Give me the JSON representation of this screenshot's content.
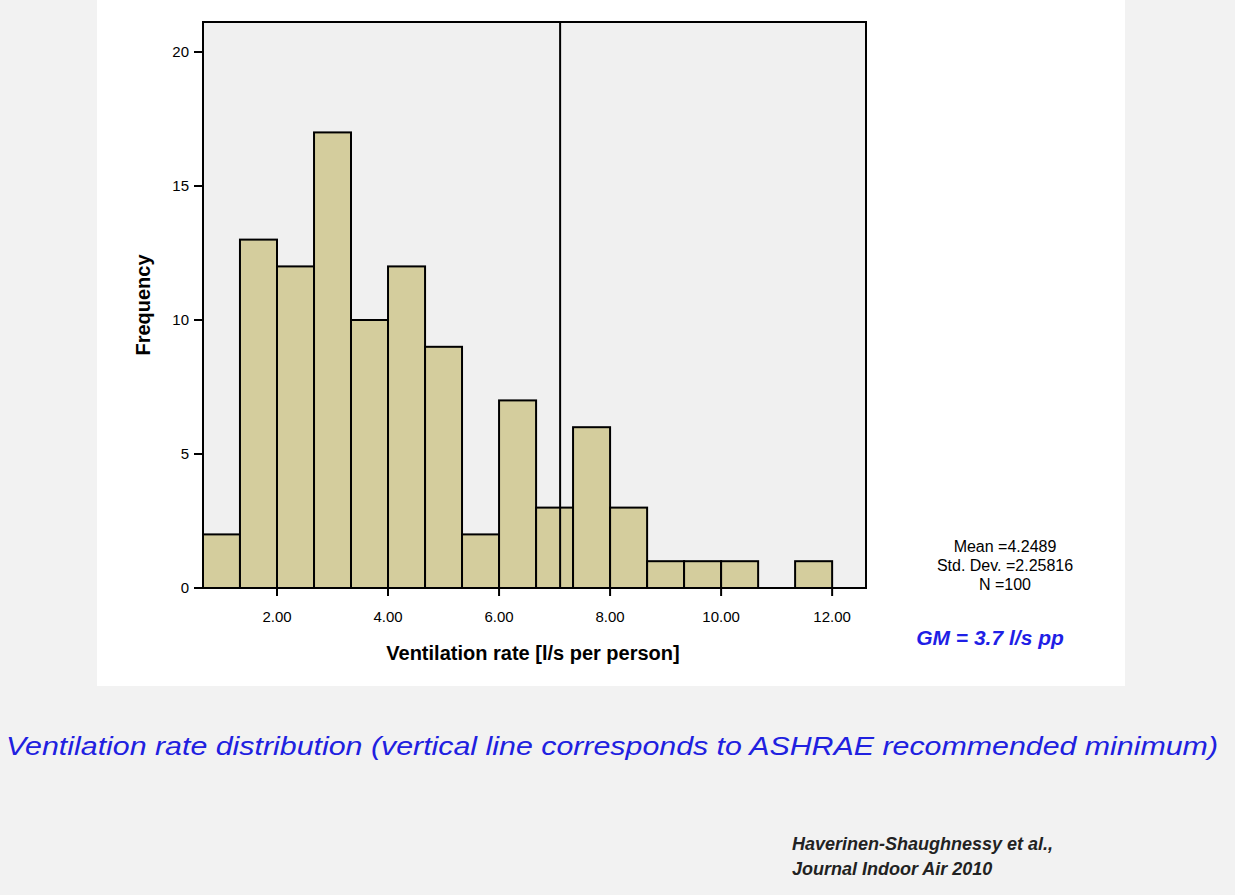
{
  "chart_data": {
    "type": "histogram",
    "x_label": "Ventilation rate [l/s per person]",
    "y_label": "Frequency",
    "bins": [
      0.667,
      1.333,
      2,
      2.667,
      3.333,
      4,
      4.667,
      5.333,
      6,
      6.667,
      7.333,
      8,
      8.667,
      9.333,
      10,
      10.667,
      11.333,
      12
    ],
    "values": [
      2,
      13,
      12,
      17,
      10,
      12,
      9,
      2,
      7,
      3,
      6,
      3,
      1,
      1,
      1,
      0,
      1
    ],
    "color": "#d4cd9d",
    "xlim": [
      0.667,
      12.61
    ],
    "ylim": [
      0,
      21.12
    ],
    "xticks": [
      {
        "value": 2,
        "label": "2.00"
      },
      {
        "value": 4,
        "label": "4.00"
      },
      {
        "value": 6,
        "label": "6.00"
      },
      {
        "value": 8,
        "label": "8.00"
      },
      {
        "value": 10,
        "label": "10.00"
      },
      {
        "value": 12,
        "label": "12.00"
      }
    ],
    "yticks": [
      0,
      5,
      10,
      15,
      20
    ],
    "reference_line": {
      "value": 7.1
    },
    "annotations": [
      "Mean =4.2489",
      "Std. Dev. =2.25816",
      "N =100"
    ],
    "annotation": "GM = 3.7 l/s pp",
    "caption": "Ventilation rate distribution (vertical line corresponds to ASHRAE recommended minimum)",
    "source": [
      "Haverinen-Shaughnessy et al.,",
      "Journal Indoor Air 2010"
    ]
  }
}
